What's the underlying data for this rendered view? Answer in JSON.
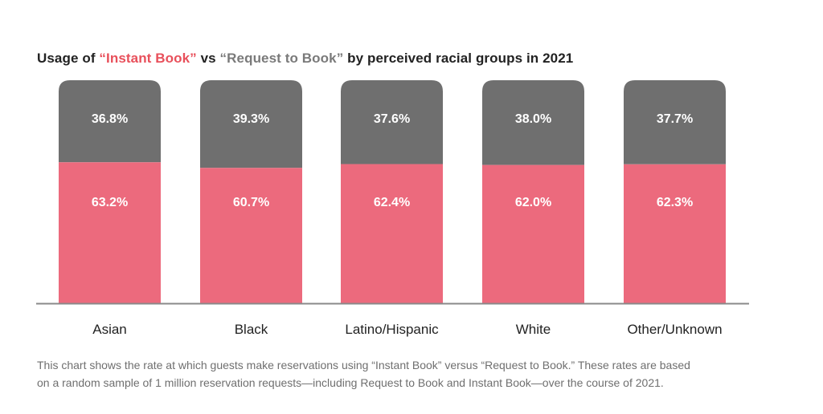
{
  "title": {
    "prefix": "Usage of ",
    "instant_book": "“Instant Book”",
    "middle": " vs ",
    "request_to_book": "“Request to Book”",
    "suffix": " by perceived racial groups in 2021"
  },
  "caption": {
    "line1": "This chart shows the rate at which guests make reservations using “Instant Book” versus “Request to Book.” These rates are based",
    "line2": "on a random sample of 1 million reservation requests—including Request to Book and Instant Book—over the course of 2021."
  },
  "colors": {
    "instant_book": "#ec6a7d",
    "request_to_book": "#6f6f6f",
    "axis": "#8a8a8a",
    "label_text": "#ffffff",
    "category_text": "#222222"
  },
  "chart_data": {
    "type": "bar",
    "stacked": true,
    "title": "Usage of “Instant Book” vs “Request to Book” by perceived racial groups in 2021",
    "xlabel": "",
    "ylabel": "",
    "ylim": [
      0,
      100
    ],
    "grid": false,
    "categories": [
      "Asian",
      "Black",
      "Latino/Hispanic",
      "White",
      "Other/Unknown"
    ],
    "series": [
      {
        "name": "Instant Book",
        "values": [
          63.2,
          60.7,
          62.4,
          62.0,
          62.3
        ],
        "labels": [
          "63.2%",
          "60.7%",
          "62.4%",
          "62.0%",
          "62.3%"
        ]
      },
      {
        "name": "Request to Book",
        "values": [
          36.8,
          39.3,
          37.6,
          38.0,
          37.7
        ],
        "labels": [
          "36.8%",
          "39.3%",
          "37.6%",
          "38.0%",
          "37.7%"
        ]
      }
    ]
  }
}
